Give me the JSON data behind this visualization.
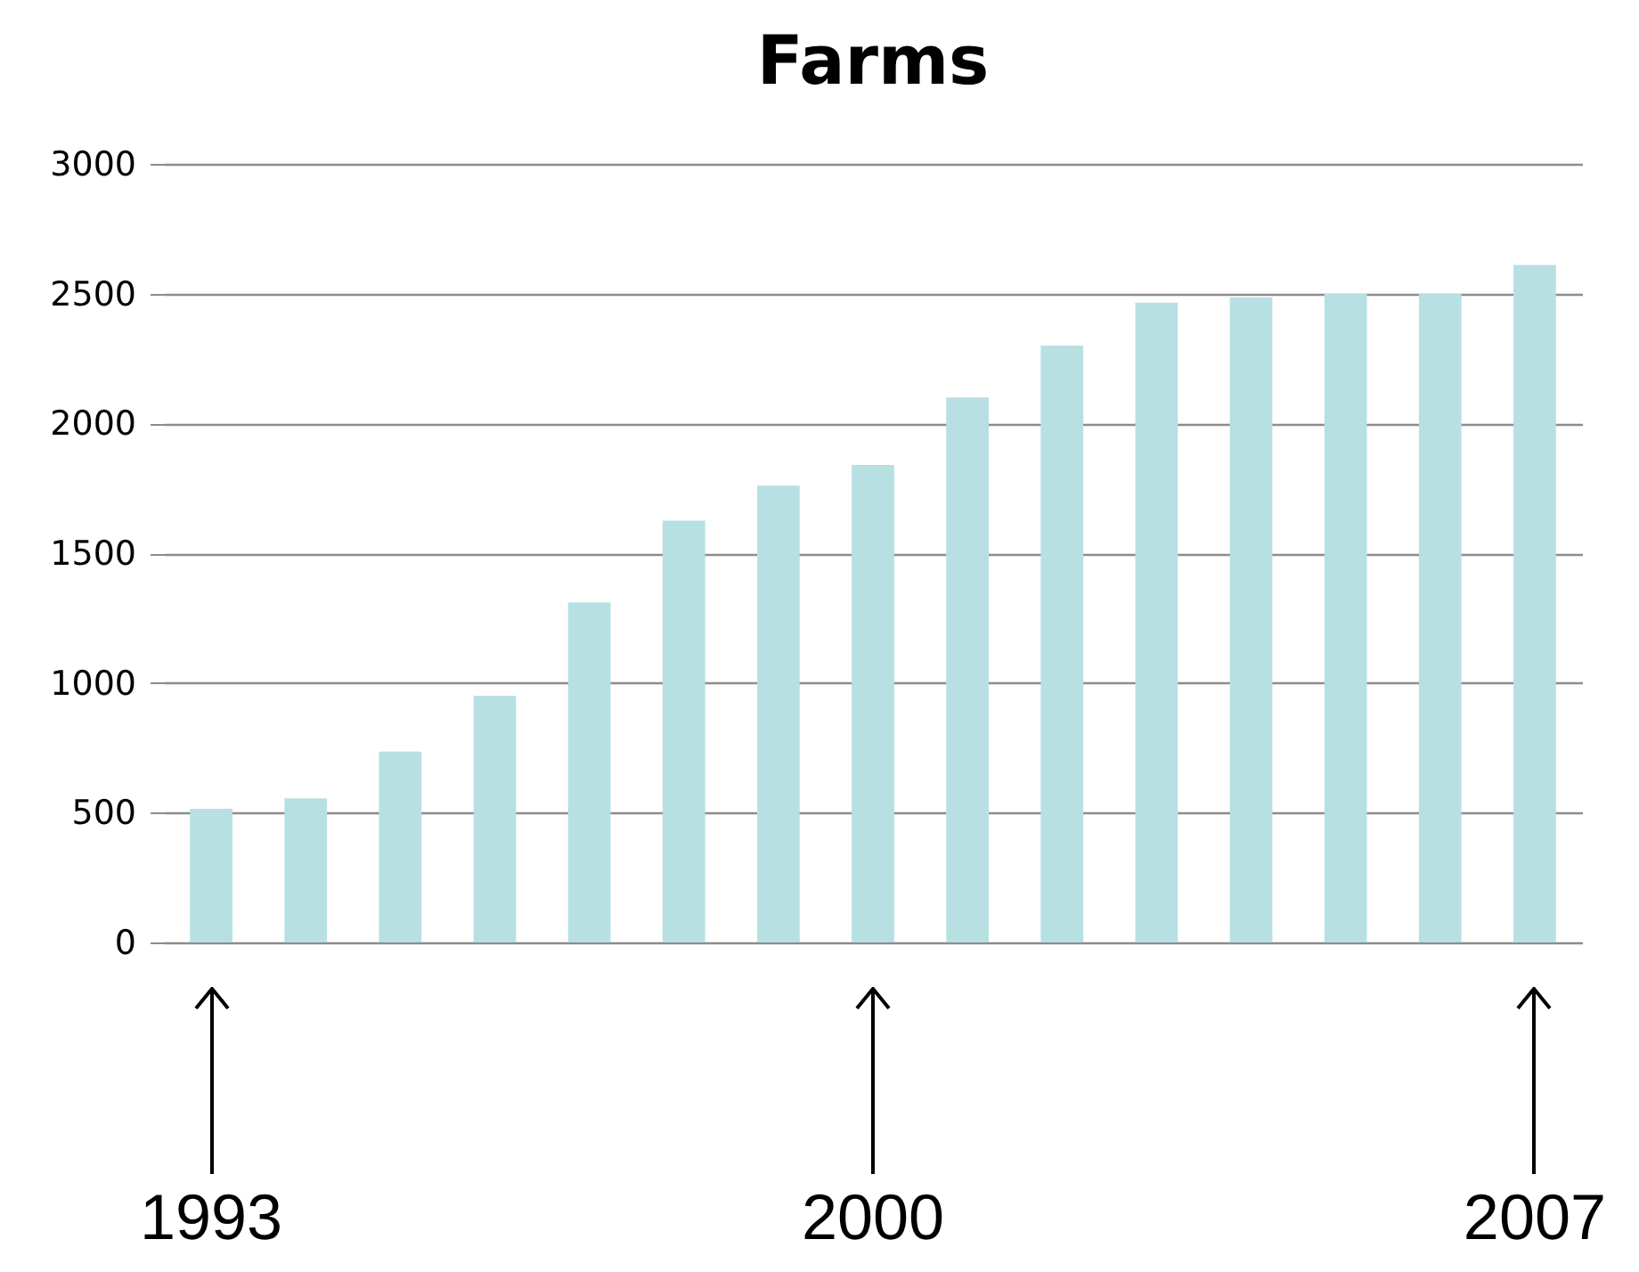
{
  "chart_data": {
    "type": "bar",
    "title": "Farms",
    "categories": [
      "1993",
      null,
      null,
      null,
      null,
      null,
      null,
      "2000",
      null,
      null,
      null,
      null,
      null,
      null,
      "2007"
    ],
    "values": [
      515,
      555,
      735,
      950,
      1310,
      1625,
      1760,
      1840,
      2100,
      2300,
      2465,
      2485,
      2500,
      2500,
      2610
    ],
    "color": "#b7e0e2",
    "ylim": [
      0,
      3000
    ],
    "yticks": [
      0,
      500,
      1000,
      1500,
      2000,
      2500,
      3000
    ],
    "grid": "y"
  }
}
